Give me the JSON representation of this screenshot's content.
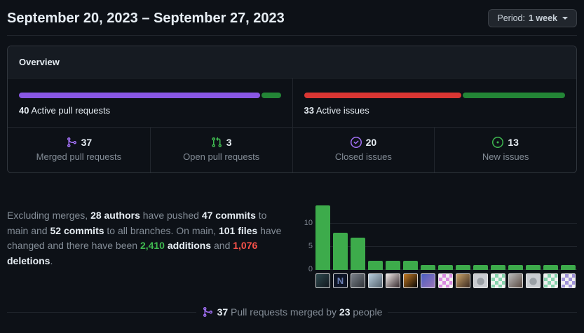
{
  "header": {
    "title": "September 20, 2023 – September 27, 2023",
    "period": {
      "prefix": "Period:",
      "value": "1 week"
    }
  },
  "overview": {
    "title": "Overview",
    "pull_requests": {
      "count": "40",
      "label": "Active pull requests",
      "segments": [
        {
          "name": "merged-segment",
          "pct": 92.5,
          "color": "#8957e5"
        },
        {
          "name": "open-segment",
          "pct": 7.5,
          "color": "#238636"
        }
      ]
    },
    "issues": {
      "count": "33",
      "label": "Active issues",
      "segments": [
        {
          "name": "closed-segment",
          "pct": 60.6,
          "color": "#da3633"
        },
        {
          "name": "new-segment",
          "pct": 39.4,
          "color": "#238636"
        }
      ]
    },
    "stats": [
      {
        "value": "37",
        "label": "Merged pull requests",
        "icon": "git-merge-icon",
        "color": "#a371f7"
      },
      {
        "value": "3",
        "label": "Open pull requests",
        "icon": "git-pull-request-icon",
        "color": "#3fb950"
      },
      {
        "value": "20",
        "label": "Closed issues",
        "icon": "issue-closed-icon",
        "color": "#a371f7"
      },
      {
        "value": "13",
        "label": "New issues",
        "icon": "issue-opened-icon",
        "color": "#3fb950"
      }
    ]
  },
  "summary": {
    "segments": [
      {
        "text": "Excluding merges, ",
        "style": "muted"
      },
      {
        "text": "28 authors",
        "style": "strong"
      },
      {
        "text": " have pushed ",
        "style": "muted"
      },
      {
        "text": "47 commits",
        "style": "strong"
      },
      {
        "text": " to main and ",
        "style": "muted"
      },
      {
        "text": "52 commits",
        "style": "strong"
      },
      {
        "text": " to all branches. On main, ",
        "style": "muted"
      },
      {
        "text": "101 files",
        "style": "strong"
      },
      {
        "text": " have changed and there have been ",
        "style": "muted"
      },
      {
        "text": "2,410",
        "style": "additions"
      },
      {
        "text": " ",
        "style": "muted"
      },
      {
        "text": "additions",
        "style": "strong"
      },
      {
        "text": " and ",
        "style": "muted"
      },
      {
        "text": "1,076",
        "style": "deletions"
      },
      {
        "text": " ",
        "style": "muted"
      },
      {
        "text": "deletions",
        "style": "strong"
      },
      {
        "text": ".",
        "style": "muted"
      }
    ]
  },
  "chart_data": {
    "type": "bar",
    "title": "",
    "values": [
      14,
      8,
      7,
      2,
      2,
      2,
      1,
      1,
      1,
      1,
      1,
      1,
      1,
      1,
      1
    ],
    "yticks": [
      0,
      5,
      10
    ],
    "ylim": [
      0,
      14.5
    ],
    "bar_color": "#3dab4b",
    "gridline_color": "#21262d",
    "x_avatars": [
      {
        "kind": "photo",
        "c1": "#2e4a4e",
        "c2": "#11161d"
      },
      {
        "kind": "logo",
        "c1": "#0e1526",
        "c2": "#6b7fb3",
        "letter": "N"
      },
      {
        "kind": "photo",
        "c1": "#7a8089",
        "c2": "#2f3338"
      },
      {
        "kind": "photo",
        "c1": "#b7cddc",
        "c2": "#55636f"
      },
      {
        "kind": "photo",
        "c1": "#efe9e7",
        "c2": "#35282c"
      },
      {
        "kind": "photo",
        "c1": "#c47a23",
        "c2": "#060606"
      },
      {
        "kind": "photo",
        "c1": "#4a5fc1",
        "c2": "#9a74b8"
      },
      {
        "kind": "identicon",
        "c1": "#d98ae0",
        "c2": "#f0f0f0"
      },
      {
        "kind": "photo",
        "c1": "#caa36a",
        "c2": "#3c2a20"
      },
      {
        "kind": "octocat",
        "c1": "#9aa0a6",
        "c2": "#c9ccd1"
      },
      {
        "kind": "identicon",
        "c1": "#86d3ad",
        "c2": "#f0f0f0"
      },
      {
        "kind": "photo",
        "c1": "#b9b9b9",
        "c2": "#5a4a42"
      },
      {
        "kind": "octocat",
        "c1": "#9aa0a6",
        "c2": "#c9ccd1"
      },
      {
        "kind": "identicon",
        "c1": "#86d3ad",
        "c2": "#f0f0f0"
      },
      {
        "kind": "identicon",
        "c1": "#9f93d8",
        "c2": "#f0f0f0"
      }
    ]
  },
  "footer": {
    "icon_color": "#a371f7",
    "segments": [
      {
        "text": "37",
        "style": "strong"
      },
      {
        "text": " Pull requests merged by ",
        "style": "muted"
      },
      {
        "text": "23",
        "style": "strong"
      },
      {
        "text": " people",
        "style": "muted"
      }
    ]
  }
}
